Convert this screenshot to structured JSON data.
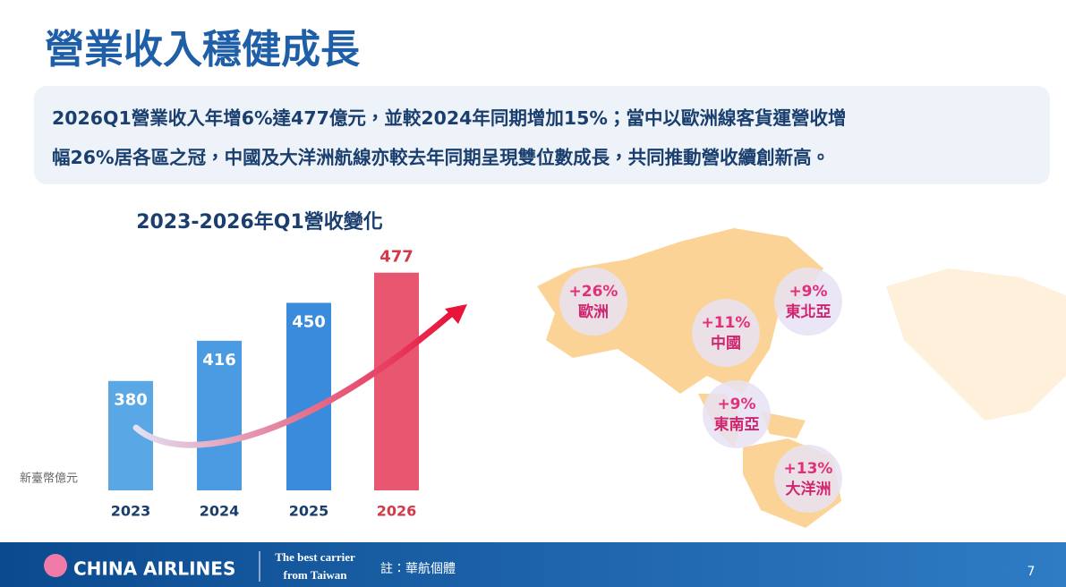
{
  "header": {
    "title": "營業收入穩健成長"
  },
  "summary": {
    "lines": [
      "2026Q1營業收入年增6%達477億元，並較2024年同期增加15%；當中以歐洲線客貨運營收增",
      "幅26%居各區之冠，中國及大洋洲航線亦較去年同期呈現雙位數成長，共同推動營收續創新高。"
    ]
  },
  "chart_data": {
    "type": "bar",
    "title": "2023-2026年Q1營收變化",
    "y_label": "新臺幣億元",
    "categories": [
      "2023",
      "2024",
      "2025",
      "2026"
    ],
    "values": [
      380,
      416,
      450,
      477
    ],
    "colors": [
      "#5aa7e6",
      "#4b9be2",
      "#3b8bdc",
      "#e9566f"
    ],
    "ylim": [
      282,
      480
    ]
  },
  "map": {
    "regions": [
      {
        "change": "+26%",
        "name": "歐洲"
      },
      {
        "change": "+9%",
        "name": "東北亞"
      },
      {
        "change": "+11%",
        "name": "中國"
      },
      {
        "change": "+9%",
        "name": "東南亞"
      },
      {
        "change": "+13%",
        "name": "大洋洲"
      }
    ]
  },
  "footer": {
    "brand": "CHINA AIRLINES",
    "slogan": [
      "The best carrier",
      "from Taiwan"
    ],
    "note": "註：華航個體",
    "page": "7"
  }
}
